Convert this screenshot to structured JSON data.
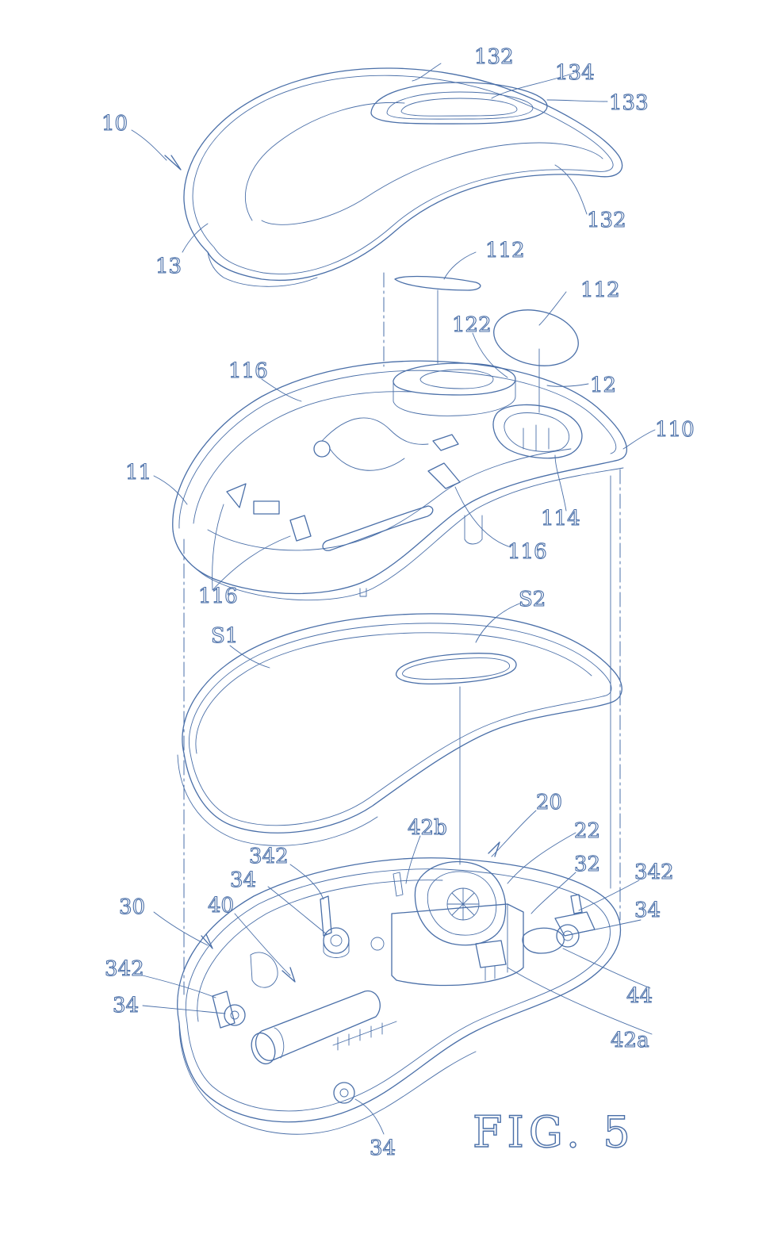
{
  "figure_label": "FIG. 5",
  "ink_color": "#4a6fa8",
  "labels": {
    "ref_10": "10",
    "ref_13": "13",
    "ref_132_top": "132",
    "ref_134": "134",
    "ref_133": "133",
    "ref_132_right": "132",
    "ref_112_a": "112",
    "ref_112_b": "112",
    "ref_122": "122",
    "ref_12": "12",
    "ref_116_top": "116",
    "ref_110": "110",
    "ref_11": "11",
    "ref_114": "114",
    "ref_116_right": "116",
    "ref_116_bottom": "116",
    "ref_S2": "S2",
    "ref_S1": "S1",
    "ref_20": "20",
    "ref_42b": "42b",
    "ref_22": "22",
    "ref_342_top": "342",
    "ref_32": "32",
    "ref_342_right": "342",
    "ref_34_left": "34",
    "ref_34_right": "34",
    "ref_30": "30",
    "ref_40": "40",
    "ref_342_left": "342",
    "ref_44": "44",
    "ref_34_side": "34",
    "ref_42a": "42a",
    "ref_34_bottom": "34"
  }
}
